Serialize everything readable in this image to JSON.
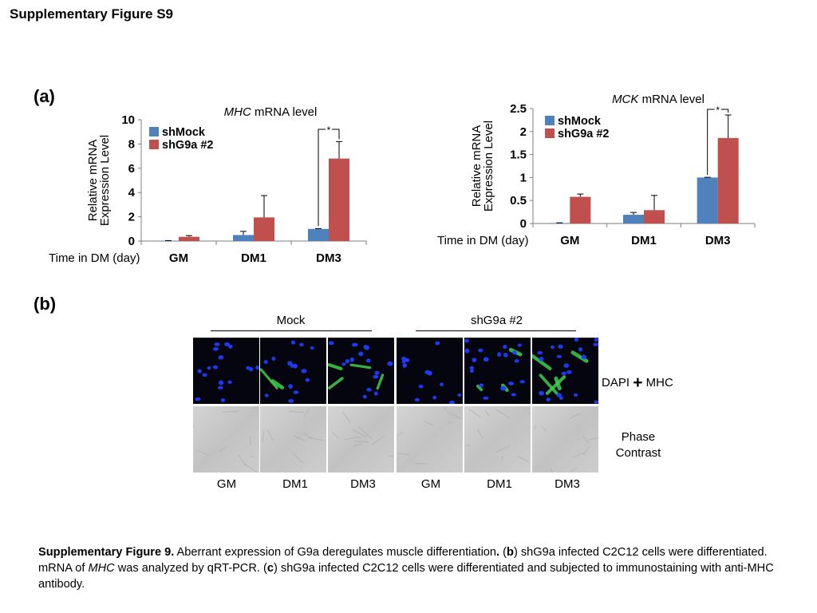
{
  "figure_title": "Supplementary Figure S9",
  "panel_a_label": "(a)",
  "panel_b_label": "(b)",
  "chart_data": [
    {
      "type": "bar",
      "title_italic": "MHC",
      "title_rest": " mRNA level",
      "ylabel_lines": [
        "Relative mRNA",
        "Expression Level"
      ],
      "xlabel_prefix": "Time in DM (day)",
      "categories": [
        "GM",
        "DM1",
        "DM3"
      ],
      "series": [
        {
          "name": "shMock",
          "color": "#4F81BD",
          "values": [
            0.02,
            0.5,
            1.0
          ],
          "errors": [
            0.02,
            0.3,
            0.03
          ]
        },
        {
          "name": "shG9a #2",
          "color": "#C0504D",
          "values": [
            0.35,
            1.95,
            6.8
          ],
          "errors": [
            0.1,
            1.8,
            1.4
          ]
        }
      ],
      "ylim": [
        0,
        10
      ],
      "yticks": [
        "0",
        "2",
        "4",
        "6",
        "8",
        "10"
      ],
      "significance": {
        "category": "DM3",
        "label": "*"
      }
    },
    {
      "type": "bar",
      "title_italic": "MCK",
      "title_rest": " mRNA level",
      "ylabel_lines": [
        "Relative mRNA",
        "Expression Level"
      ],
      "xlabel_prefix": "Time in DM (day)",
      "categories": [
        "GM",
        "DM1",
        "DM3"
      ],
      "series": [
        {
          "name": "shMock",
          "color": "#4F81BD",
          "values": [
            0.01,
            0.19,
            1.0
          ],
          "errors": [
            0.005,
            0.05,
            0.005
          ]
        },
        {
          "name": "shG9a #2",
          "color": "#C0504D",
          "values": [
            0.58,
            0.29,
            1.86
          ],
          "errors": [
            0.06,
            0.32,
            0.5
          ]
        }
      ],
      "ylim": [
        0,
        2.5
      ],
      "yticks": [
        "0",
        "0.5",
        "1",
        "1.5",
        "2",
        "2.5"
      ],
      "significance": {
        "category": "DM3",
        "label": "*"
      }
    }
  ],
  "panel_b": {
    "groups": [
      "Mock",
      "shG9a #2"
    ],
    "columns": [
      "GM",
      "DM1",
      "DM3",
      "GM",
      "DM1",
      "DM3"
    ],
    "row_labels": {
      "fluor_a": "DAPI",
      "fluor_plus": "+",
      "fluor_b": "MHC",
      "phase_line1": "Phase",
      "phase_line2": "Contrast"
    },
    "colors": {
      "nuclei": "#1f3cff",
      "mhc": "#3fd04a",
      "phase": "#c8c8c8"
    }
  },
  "caption": {
    "bold_lead": "Supplementary Figure 9.",
    "part1": " Aberrant expression of G9a deregulates muscle differentiation",
    "dot": ".",
    "part2": " (",
    "b_letter": "b",
    "part3": ") shG9a infected C2C12 cells were differentiated. mRNA of ",
    "mhc_italic": "MHC",
    "part4": " was analyzed by qRT-PCR. (",
    "c_letter": "c",
    "part5": ") shG9a infected C2C12 cells were differentiated and subjected to immunostaining with anti-MHC antibody."
  }
}
